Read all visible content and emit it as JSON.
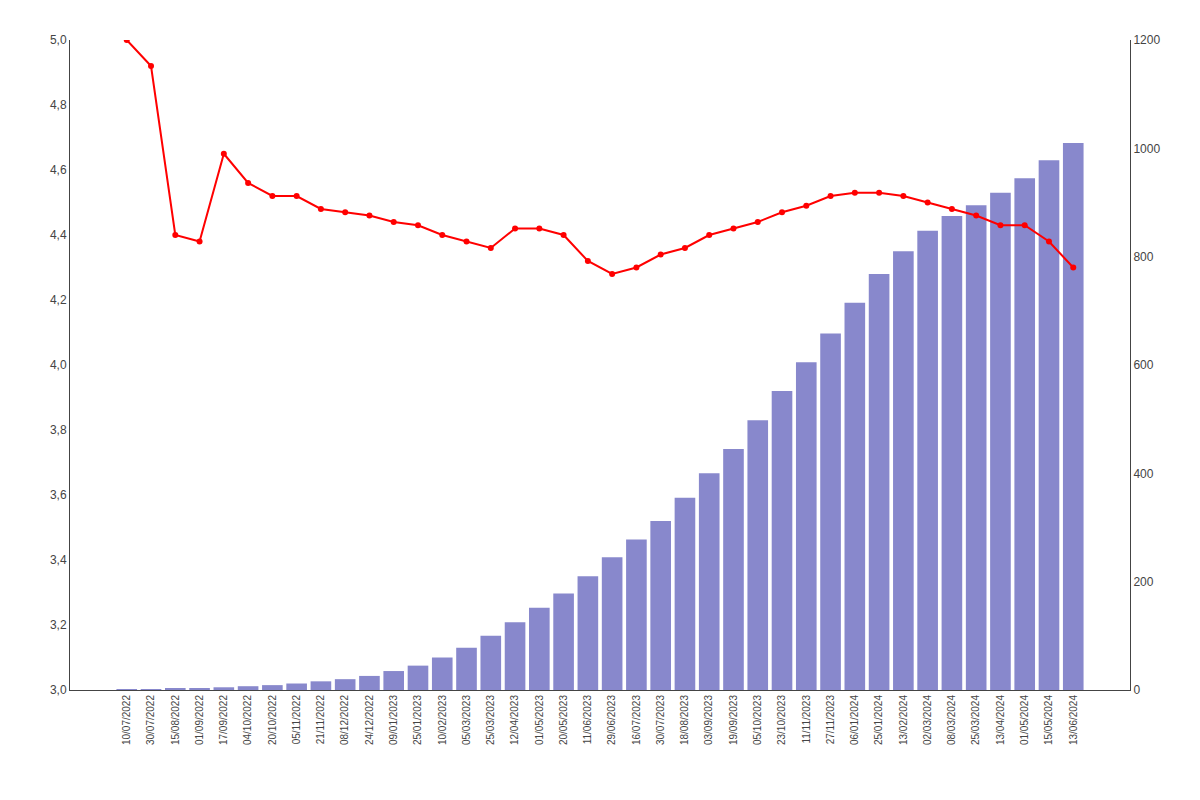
{
  "chart_data": {
    "type": "bar",
    "categories": [
      "10/07/2022",
      "30/07/2022",
      "15/08/2022",
      "01/09/2022",
      "17/09/2022",
      "04/10/2022",
      "20/10/2022",
      "05/11/2022",
      "21/11/2022",
      "08/12/2022",
      "24/12/2022",
      "09/01/2023",
      "25/01/2023",
      "10/02/2023",
      "05/03/2023",
      "25/03/2023",
      "12/04/2023",
      "01/05/2023",
      "20/05/2023",
      "11/06/2023",
      "29/06/2023",
      "16/07/2023",
      "30/07/2023",
      "18/08/2023",
      "03/09/2023",
      "19/09/2023",
      "05/10/2023",
      "23/10/2023",
      "11/11/2023",
      "27/11/2023",
      "06/01/2024",
      "25/01/2024",
      "13/02/2024",
      "02/03/2024",
      "08/03/2024",
      "25/03/2024",
      "13/04/2024",
      "01/05/2024",
      "15/05/2024",
      "13/06/2024"
    ],
    "series": [
      {
        "type": "line",
        "color": "#ff0000",
        "marker": "circle",
        "line_style": "solid",
        "values": [
          5.0,
          4.92,
          4.4,
          4.38,
          4.65,
          4.56,
          4.52,
          4.52,
          4.48,
          4.47,
          4.46,
          4.44,
          4.43,
          4.4,
          4.38,
          4.36,
          4.42,
          4.42,
          4.4,
          4.32,
          4.28,
          4.3,
          4.34,
          4.36,
          4.4,
          4.42,
          4.44,
          4.47,
          4.49,
          4.52,
          4.53,
          4.53,
          4.52,
          4.5,
          4.48,
          4.46,
          4.43,
          4.43,
          4.38,
          4.3
        ]
      },
      {
        "type": "bar",
        "axis": "y2",
        "color": "#8888cc",
        "values": [
          1,
          1,
          2,
          3,
          5,
          7,
          9,
          12,
          16,
          20,
          26,
          35,
          45,
          60,
          78,
          100,
          125,
          152,
          178,
          210,
          245,
          278,
          312,
          355,
          400,
          445,
          498,
          552,
          605,
          658,
          715,
          768,
          810,
          848,
          875,
          895,
          918,
          945,
          978,
          1010
        ]
      }
    ],
    "ylim": [
      3.0,
      5.0
    ],
    "yticks": [
      {
        "value": 3.0,
        "label": "3,0"
      },
      {
        "value": 3.2,
        "label": "3,2"
      },
      {
        "value": 3.4,
        "label": "3,4"
      },
      {
        "value": 3.6,
        "label": "3,6"
      },
      {
        "value": 3.8,
        "label": "3,8"
      },
      {
        "value": 4.0,
        "label": "4,0"
      },
      {
        "value": 4.2,
        "label": "4,2"
      },
      {
        "value": 4.4,
        "label": "4,4"
      },
      {
        "value": 4.6,
        "label": "4,6"
      },
      {
        "value": 4.8,
        "label": "4,8"
      },
      {
        "value": 5.0,
        "label": "5,0"
      }
    ],
    "y2lim": [
      0,
      1200
    ],
    "y2ticks": [
      0,
      200,
      400,
      600,
      800,
      1000,
      1200
    ],
    "grid": false
  }
}
